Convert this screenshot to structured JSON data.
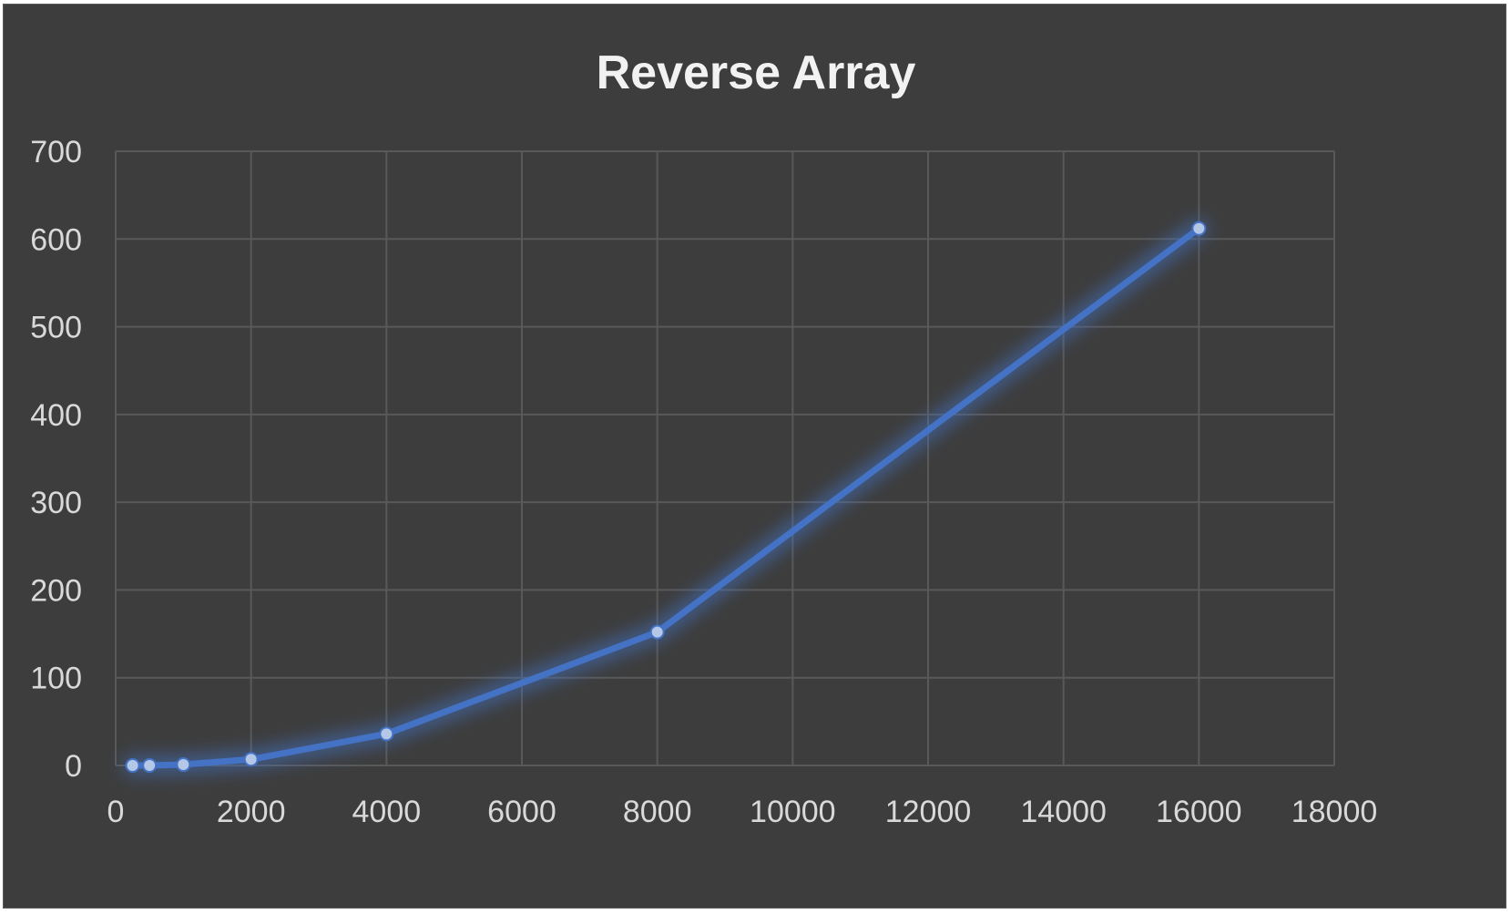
{
  "chart_data": {
    "type": "scatter",
    "title": "Reverse Array",
    "xlabel": "",
    "ylabel": "",
    "xlim": [
      0,
      18000
    ],
    "ylim": [
      0,
      700
    ],
    "xticks": [
      0,
      2000,
      4000,
      6000,
      8000,
      10000,
      12000,
      14000,
      16000,
      18000
    ],
    "yticks": [
      0,
      100,
      200,
      300,
      400,
      500,
      600,
      700
    ],
    "grid": true,
    "legend": "none",
    "series": [
      {
        "color": "#4472c4",
        "marker_color": "#b4c7e7",
        "points": [
          {
            "x": 250,
            "y": 0
          },
          {
            "x": 500,
            "y": 0
          },
          {
            "x": 1000,
            "y": 1
          },
          {
            "x": 2000,
            "y": 7
          },
          {
            "x": 4000,
            "y": 36
          },
          {
            "x": 8000,
            "y": 152
          },
          {
            "x": 16000,
            "y": 612
          }
        ]
      }
    ],
    "colors": {
      "background": "#3d3d3d",
      "grid": "#595959",
      "text": "#d9d9d9",
      "title": "#f2f2f2"
    }
  }
}
